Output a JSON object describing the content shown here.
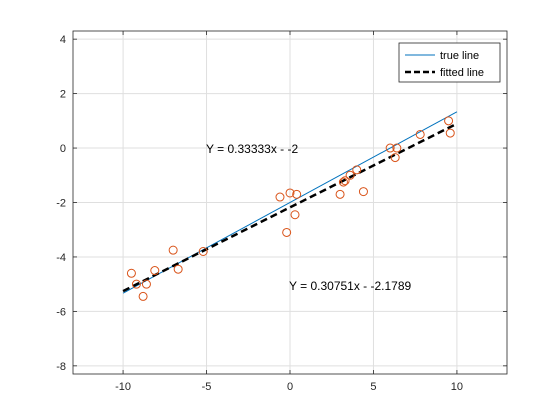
{
  "chart_data": {
    "type": "scatter",
    "xlim": [
      -13,
      13
    ],
    "ylim": [
      -8.3,
      4.3
    ],
    "xticks": [
      "-10",
      "-5",
      "0",
      "5",
      "10"
    ],
    "yticks": [
      "-8",
      "-6",
      "-4",
      "-2",
      "0",
      "2",
      "4"
    ],
    "grid": true,
    "legend_position": "top-right",
    "legend": [
      "true line",
      "fitted line"
    ],
    "annotations": [
      {
        "text": "Y = 0.33333x - -2",
        "x": -5,
        "y": 0
      },
      {
        "text": "Y = 0.30751x - -2.1789",
        "x": 0,
        "y": -5.1
      }
    ],
    "series": [
      {
        "name": "true line",
        "kind": "line",
        "color": "#0072BD",
        "x": [
          -10,
          10
        ],
        "y": [
          -5.333,
          1.333
        ]
      },
      {
        "name": "fitted line",
        "kind": "dashed-line",
        "color": "#000000",
        "x": [
          -10,
          10
        ],
        "y": [
          -5.254,
          0.896
        ]
      },
      {
        "kind": "markers",
        "color": "#D95319",
        "x": [
          -9.5,
          -9.2,
          -8.8,
          -8.6,
          -8.1,
          -7,
          -6.7,
          -5.2,
          -0.6,
          -0.2,
          0,
          0.3,
          0.4,
          3,
          3.2,
          3.3,
          3.6,
          4,
          4.4,
          6,
          6.3,
          6.4,
          7.8,
          9.5,
          9.6
        ],
        "y": [
          -4.6,
          -5,
          -5.45,
          -5,
          -4.5,
          -3.75,
          -4.45,
          -3.8,
          -1.8,
          -3.1,
          -1.65,
          -2.45,
          -1.7,
          -1.7,
          -1.25,
          -1.2,
          -1.0,
          -0.8,
          -1.6,
          0,
          -0.35,
          0,
          0.5,
          1.0,
          0.55
        ]
      }
    ]
  }
}
